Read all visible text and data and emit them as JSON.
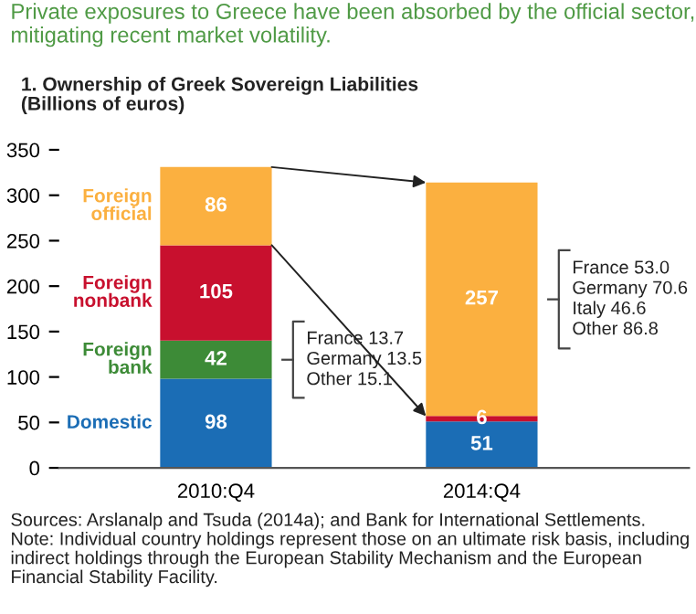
{
  "chart_data": {
    "type": "bar",
    "stacked": true,
    "title": "Private exposures to Greece have been absorbed by the official sector, mitigating recent market volatility.",
    "subtitle": "1. Ownership of Greek Sovereign Liabilities\n(Billions of euros)",
    "categories": [
      "2010:Q4",
      "2014:Q4"
    ],
    "series": [
      {
        "name": "Domestic",
        "color": "#1b6db5",
        "values": [
          98,
          51
        ]
      },
      {
        "name": "Foreign\nbank",
        "color": "#3d8b37",
        "values": [
          42,
          null
        ]
      },
      {
        "name": "Foreign\nnonbank",
        "color": "#c8102e",
        "values": [
          105,
          6
        ]
      },
      {
        "name": "Foreign\nofficial",
        "color": "#fbb040",
        "values": [
          86,
          257
        ]
      }
    ],
    "ylim": [
      0,
      350
    ],
    "yticks": [
      0,
      50,
      100,
      150,
      200,
      250,
      300,
      350
    ],
    "grid": false,
    "legend": false,
    "data_labels": true,
    "annotations": [
      "France 13.7\nGermany 13.5\nOther 15.1",
      "France 53.0\nGermany 70.6\nItaly 46.6\nOther 86.8",
      "Sources: Arslanalp and Tsuda (2014a); and Bank for International Settlements.",
      "Note: Individual country holdings represent those on an ultimate risk basis, including indirect holdings through the European Stability Mechanism and the European Financial Stability Facility."
    ]
  }
}
